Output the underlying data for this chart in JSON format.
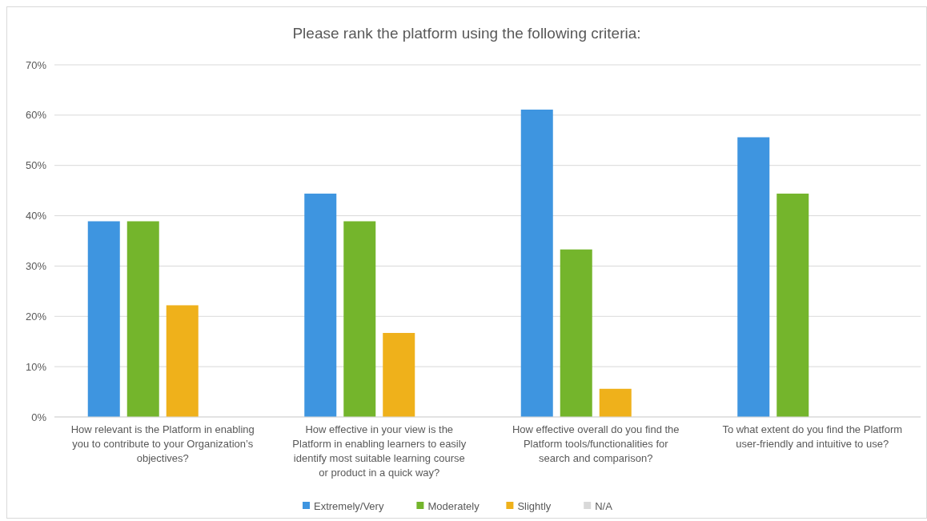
{
  "chart_data": {
    "type": "bar",
    "title": "Please rank the platform using the following criteria:",
    "categories": [
      "How relevant is the Platform in enabling you to contribute to your Organization’s objectives?",
      "How effective in your view is the Platform in enabling learners to easily identify most suitable learning course or product in a quick way?",
      "How effective overall do you find the Platform tools/functionalities for search and comparison?",
      "To what extent do you find the Platform user-friendly and intuitive to use?"
    ],
    "series": [
      {
        "name": "Extremely/Very",
        "color": "#3e95e0",
        "values": [
          38.9,
          44.4,
          61.1,
          55.6
        ]
      },
      {
        "name": "Moderately",
        "color": "#74b52c",
        "values": [
          38.9,
          38.9,
          33.3,
          44.4
        ]
      },
      {
        "name": "Slightly",
        "color": "#efb11b",
        "values": [
          22.2,
          16.7,
          5.6,
          0
        ]
      },
      {
        "name": "N/A",
        "color": "#d9d9d9",
        "values": [
          0,
          0,
          0,
          0
        ]
      }
    ],
    "ylim": [
      0,
      70
    ],
    "yticks": [
      {
        "value": 0,
        "label": "0%"
      },
      {
        "value": 10,
        "label": "10%"
      },
      {
        "value": 20,
        "label": "20%"
      },
      {
        "value": 30,
        "label": "30%"
      },
      {
        "value": 40,
        "label": "40%"
      },
      {
        "value": 50,
        "label": "50%"
      },
      {
        "value": 60,
        "label": "60%"
      },
      {
        "value": 70,
        "label": "70%"
      }
    ],
    "grid": "y",
    "legend": "bottom"
  }
}
